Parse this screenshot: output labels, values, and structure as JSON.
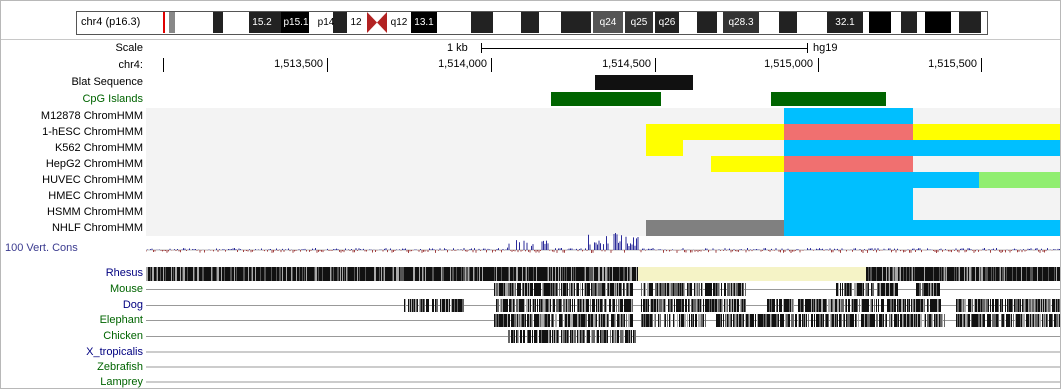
{
  "ideogram": {
    "label": "chr4 (p16.3)",
    "bands": [
      "15.2",
      "p15.1",
      "p14",
      "12",
      "q12",
      "13.1",
      "q24",
      "q25",
      "q26",
      "q28.3",
      "32.1"
    ]
  },
  "ruler": {
    "scale_label": "Scale",
    "scale_value": "1 kb",
    "assembly": "hg19",
    "chrom_label": "chr4:",
    "ticks": [
      "1,513,500",
      "1,514,000",
      "1,514,500",
      "1,515,000",
      "1,515,500"
    ]
  },
  "tracks": {
    "blat": "Blat Sequence",
    "cpg": "CpG Islands",
    "chromhmm": [
      "M12878 ChromHMM",
      "1-hESC ChromHMM",
      "K562 ChromHMM",
      "HepG2 ChromHMM",
      "HUVEC ChromHMM",
      "HMEC ChromHMM",
      "HSMM ChromHMM",
      "NHLF ChromHMM"
    ],
    "cons": "100 Vert. Cons",
    "species": [
      "Rhesus",
      "Mouse",
      "Dog",
      "Elephant",
      "Chicken",
      "X_tropicalis",
      "Zebrafish",
      "Lamprey"
    ]
  },
  "colors": {
    "cpg": "#006400",
    "blat": "#111111",
    "chromhmm_active": "#00bfff",
    "chromhmm_yellow": "#ffff00",
    "chromhmm_red": "#f07070",
    "chromhmm_grey": "#808080",
    "chromhmm_green": "#90ee70",
    "species_navy": "#000080",
    "species_green": "#006400",
    "cons_label": "#3b3b8f",
    "rhesus_gap": "#f5f3c6"
  }
}
